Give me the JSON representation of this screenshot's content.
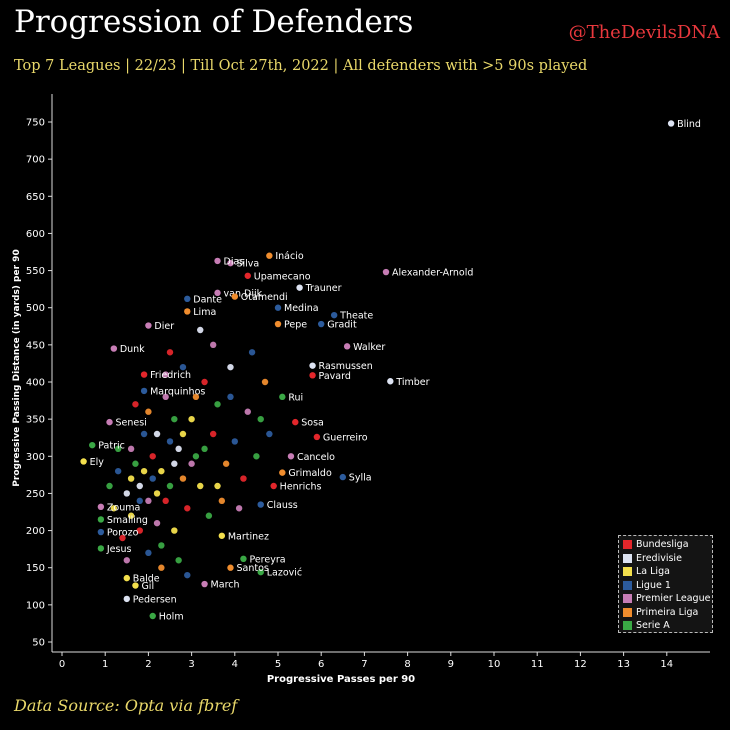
{
  "header": {
    "title": "Progression of Defenders",
    "handle": "@TheDevilsDNA",
    "subtitle": "Top 7 Leagues | 22/23 | Till Oct 27th, 2022 | All defenders with >5 90s played"
  },
  "footer": {
    "source": "Data Source: Opta via fbref"
  },
  "chart_data": {
    "type": "scatter",
    "xlabel": "Progressive Passes per 90",
    "ylabel": "Progressive Passing Distance (in yards) per 90",
    "xlim": [
      0,
      15
    ],
    "ylim": [
      50,
      750
    ],
    "x_ticks": [
      "0",
      "1",
      "2",
      "3",
      "4",
      "5",
      "6",
      "7",
      "8",
      "9",
      "10",
      "11",
      "12",
      "13",
      "14"
    ],
    "y_ticks": [
      "50",
      "100",
      "150",
      "200",
      "250",
      "300",
      "350",
      "400",
      "450",
      "500",
      "550",
      "600",
      "650",
      "700",
      "750"
    ],
    "legend": [
      {
        "name": "Bundesliga",
        "color": "#e3262b"
      },
      {
        "name": "Eredivisie",
        "color": "#dde3f2"
      },
      {
        "name": "La Liga",
        "color": "#f4e04d"
      },
      {
        "name": "Ligue 1",
        "color": "#2c5b9c"
      },
      {
        "name": "Premier League",
        "color": "#c77db5"
      },
      {
        "name": "Primeira Liga",
        "color": "#f08d2e"
      },
      {
        "name": "Serie A",
        "color": "#3aa845"
      }
    ],
    "labeled_points": [
      {
        "name": "Blind",
        "x": 14.1,
        "y": 748,
        "league": "Eredivisie"
      },
      {
        "name": "Silva",
        "x": 3.9,
        "y": 560,
        "league": "Premier League"
      },
      {
        "name": "Dias",
        "x": 3.6,
        "y": 563,
        "league": "Premier League"
      },
      {
        "name": "Inácio",
        "x": 4.8,
        "y": 570,
        "league": "Primeira Liga"
      },
      {
        "name": "Alexander-Arnold",
        "x": 7.5,
        "y": 548,
        "league": "Premier League"
      },
      {
        "name": "Upamecano",
        "x": 4.3,
        "y": 543,
        "league": "Bundesliga"
      },
      {
        "name": "van Dijk",
        "x": 3.6,
        "y": 520,
        "league": "Premier League"
      },
      {
        "name": "Trauner",
        "x": 5.5,
        "y": 527,
        "league": "Eredivisie"
      },
      {
        "name": "Otamendi",
        "x": 4.0,
        "y": 515,
        "league": "Primeira Liga"
      },
      {
        "name": "Dante",
        "x": 2.9,
        "y": 512,
        "league": "Ligue 1"
      },
      {
        "name": "Lima",
        "x": 2.9,
        "y": 495,
        "league": "Primeira Liga"
      },
      {
        "name": "Medina",
        "x": 5.0,
        "y": 500,
        "league": "Ligue 1"
      },
      {
        "name": "Theate",
        "x": 6.3,
        "y": 490,
        "league": "Ligue 1"
      },
      {
        "name": "Dier",
        "x": 2.0,
        "y": 476,
        "league": "Premier League"
      },
      {
        "name": "Pepe",
        "x": 5.0,
        "y": 478,
        "league": "Primeira Liga"
      },
      {
        "name": "Gradit",
        "x": 6.0,
        "y": 478,
        "league": "Ligue 1"
      },
      {
        "name": "Dunk",
        "x": 1.2,
        "y": 445,
        "league": "Premier League"
      },
      {
        "name": "Walker",
        "x": 6.6,
        "y": 448,
        "league": "Premier League"
      },
      {
        "name": "Rasmussen",
        "x": 5.8,
        "y": 422,
        "league": "Eredivisie"
      },
      {
        "name": "Friedrich",
        "x": 1.9,
        "y": 410,
        "league": "Bundesliga"
      },
      {
        "name": "Pavard",
        "x": 5.8,
        "y": 409,
        "league": "Bundesliga"
      },
      {
        "name": "Timber",
        "x": 7.6,
        "y": 401,
        "league": "Eredivisie"
      },
      {
        "name": "Marquinhos",
        "x": 1.9,
        "y": 388,
        "league": "Ligue 1"
      },
      {
        "name": "Rui",
        "x": 5.1,
        "y": 380,
        "league": "Serie A"
      },
      {
        "name": "Senesi",
        "x": 1.1,
        "y": 346,
        "league": "Premier League"
      },
      {
        "name": "Sosa",
        "x": 5.4,
        "y": 346,
        "league": "Bundesliga"
      },
      {
        "name": "Guerreiro",
        "x": 5.9,
        "y": 326,
        "league": "Bundesliga"
      },
      {
        "name": "Patric",
        "x": 0.7,
        "y": 315,
        "league": "Serie A"
      },
      {
        "name": "Cancelo",
        "x": 5.3,
        "y": 300,
        "league": "Premier League"
      },
      {
        "name": "Ely",
        "x": 0.5,
        "y": 293,
        "league": "La Liga"
      },
      {
        "name": "Grimaldo",
        "x": 5.1,
        "y": 278,
        "league": "Primeira Liga"
      },
      {
        "name": "Henrichs",
        "x": 4.9,
        "y": 260,
        "league": "Bundesliga"
      },
      {
        "name": "Sylla",
        "x": 6.5,
        "y": 272,
        "league": "Ligue 1"
      },
      {
        "name": "Zouma",
        "x": 0.9,
        "y": 232,
        "league": "Premier League"
      },
      {
        "name": "Clauss",
        "x": 4.6,
        "y": 235,
        "league": "Ligue 1"
      },
      {
        "name": "Smalling",
        "x": 0.9,
        "y": 215,
        "league": "Serie A"
      },
      {
        "name": "Porozo",
        "x": 0.9,
        "y": 198,
        "league": "Ligue 1"
      },
      {
        "name": "Martinez",
        "x": 3.7,
        "y": 193,
        "league": "La Liga"
      },
      {
        "name": "Jesus",
        "x": 0.9,
        "y": 176,
        "league": "Serie A"
      },
      {
        "name": "Pereyra",
        "x": 4.2,
        "y": 162,
        "league": "Serie A"
      },
      {
        "name": "Lazović",
        "x": 4.6,
        "y": 144,
        "league": "Serie A"
      },
      {
        "name": "Santos",
        "x": 3.9,
        "y": 150,
        "league": "Primeira Liga"
      },
      {
        "name": "Balde",
        "x": 1.5,
        "y": 136,
        "league": "La Liga"
      },
      {
        "name": "Gil",
        "x": 1.7,
        "y": 126,
        "league": "La Liga"
      },
      {
        "name": "March",
        "x": 3.3,
        "y": 128,
        "league": "Premier League"
      },
      {
        "name": "Pedersen",
        "x": 1.5,
        "y": 108,
        "league": "Eredivisie"
      },
      {
        "name": "Holm",
        "x": 2.1,
        "y": 85,
        "league": "Serie A"
      }
    ],
    "unlabeled_points": [
      [
        2.1,
        300,
        "Bundesliga"
      ],
      [
        2.3,
        280,
        "La Liga"
      ],
      [
        1.8,
        260,
        "Eredivisie"
      ],
      [
        2.5,
        320,
        "Ligue 1"
      ],
      [
        3.1,
        300,
        "Serie A"
      ],
      [
        2.0,
        240,
        "Premier League"
      ],
      [
        2.8,
        270,
        "Primeira Liga"
      ],
      [
        1.6,
        220,
        "La Liga"
      ],
      [
        3.5,
        330,
        "Bundesliga"
      ],
      [
        2.6,
        350,
        "Serie A"
      ],
      [
        1.9,
        330,
        "Ligue 1"
      ],
      [
        3.2,
        260,
        "La Liga"
      ],
      [
        2.2,
        210,
        "Premier League"
      ],
      [
        1.5,
        250,
        "Eredivisie"
      ],
      [
        2.9,
        230,
        "Bundesliga"
      ],
      [
        3.8,
        290,
        "Primeira Liga"
      ],
      [
        2.4,
        380,
        "Premier League"
      ],
      [
        1.7,
        290,
        "Serie A"
      ],
      [
        3.0,
        350,
        "La Liga"
      ],
      [
        2.7,
        310,
        "Eredivisie"
      ],
      [
        1.3,
        280,
        "Ligue 1"
      ],
      [
        2.5,
        260,
        "Serie A"
      ],
      [
        3.6,
        260,
        "La Liga"
      ],
      [
        4.0,
        320,
        "Ligue 1"
      ],
      [
        1.8,
        200,
        "Bundesliga"
      ],
      [
        2.3,
        180,
        "Serie A"
      ],
      [
        1.2,
        230,
        "La Liga"
      ],
      [
        3.3,
        400,
        "Bundesliga"
      ],
      [
        2.0,
        360,
        "Primeira Liga"
      ],
      [
        4.3,
        360,
        "Premier League"
      ],
      [
        2.8,
        420,
        "Ligue 1"
      ],
      [
        3.9,
        420,
        "Eredivisie"
      ],
      [
        1.6,
        310,
        "Premier League"
      ],
      [
        2.1,
        270,
        "Ligue 1"
      ],
      [
        3.4,
        220,
        "Serie A"
      ],
      [
        2.6,
        200,
        "La Liga"
      ],
      [
        1.4,
        190,
        "Bundesliga"
      ],
      [
        4.5,
        300,
        "Serie A"
      ],
      [
        3.1,
        380,
        "Primeira Liga"
      ],
      [
        2.2,
        330,
        "Eredivisie"
      ],
      [
        2.0,
        170,
        "Ligue 1"
      ],
      [
        1.5,
        160,
        "Premier League"
      ],
      [
        2.7,
        160,
        "Serie A"
      ],
      [
        3.7,
        240,
        "Primeira Liga"
      ],
      [
        4.2,
        270,
        "Bundesliga"
      ],
      [
        1.1,
        260,
        "Serie A"
      ],
      [
        2.4,
        240,
        "Bundesliga"
      ],
      [
        3.0,
        290,
        "Premier League"
      ],
      [
        1.9,
        280,
        "La Liga"
      ],
      [
        3.5,
        450,
        "Premier League"
      ],
      [
        4.4,
        440,
        "Ligue 1"
      ],
      [
        2.5,
        440,
        "Bundesliga"
      ],
      [
        1.7,
        370,
        "Bundesliga"
      ],
      [
        4.7,
        400,
        "Primeira Liga"
      ],
      [
        3.2,
        470,
        "Eredivisie"
      ],
      [
        2.9,
        140,
        "Ligue 1"
      ],
      [
        2.3,
        150,
        "Primeira Liga"
      ],
      [
        1.3,
        310,
        "Serie A"
      ],
      [
        3.6,
        370,
        "Serie A"
      ],
      [
        4.8,
        330,
        "Ligue 1"
      ],
      [
        2.8,
        330,
        "La Liga"
      ],
      [
        1.8,
        240,
        "Ligue 1"
      ],
      [
        2.6,
        290,
        "Eredivisie"
      ],
      [
        3.3,
        310,
        "Serie A"
      ],
      [
        4.1,
        230,
        "Premier League"
      ],
      [
        2.2,
        250,
        "La Liga"
      ],
      [
        1.6,
        270,
        "La Liga"
      ],
      [
        3.9,
        380,
        "Ligue 1"
      ],
      [
        2.4,
        410,
        "Premier League"
      ],
      [
        4.6,
        350,
        "Serie A"
      ]
    ]
  }
}
